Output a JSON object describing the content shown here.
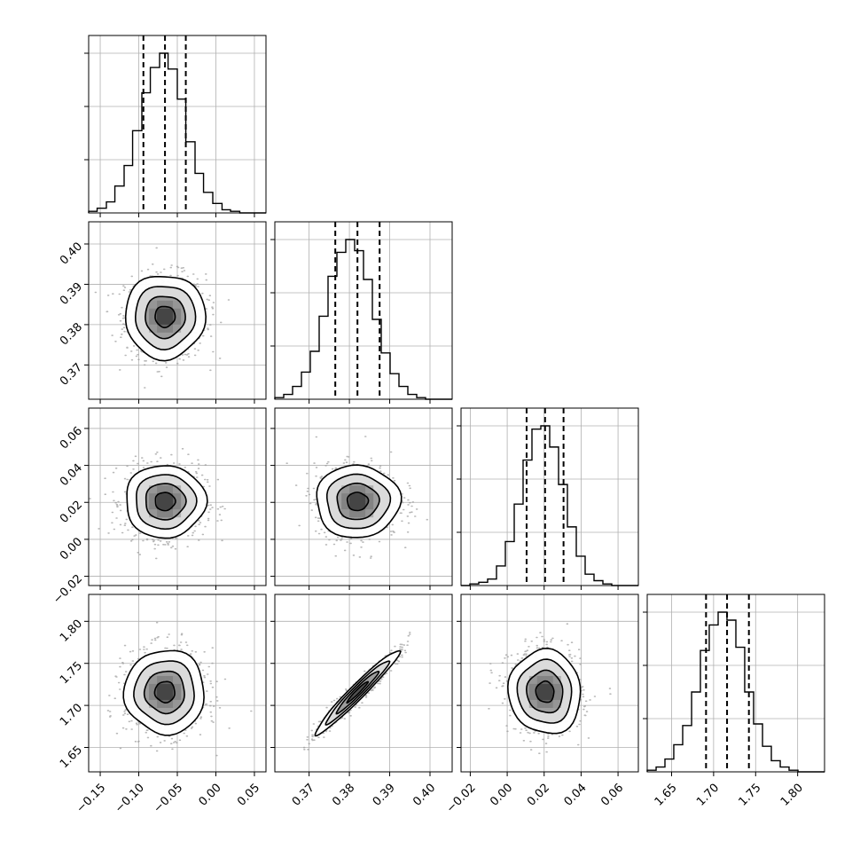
{
  "chart_data": {
    "type": "corner",
    "title": "",
    "parameters": [
      {
        "range": [
          -0.165,
          0.065
        ],
        "ticks": [
          -0.15,
          -0.1,
          -0.05,
          0.0,
          0.05
        ],
        "tick_labels": [
          "−0.15",
          "−0.10",
          "−0.05",
          "0.00",
          "0.05"
        ],
        "quantiles": [
          -0.094,
          -0.066,
          -0.039
        ],
        "center": -0.066,
        "sigma": 0.026,
        "histogram": {
          "bin_edges": [
            -0.165,
            -0.154,
            -0.142,
            -0.131,
            -0.119,
            -0.108,
            -0.096,
            -0.085,
            -0.073,
            -0.062,
            -0.05,
            -0.039,
            -0.027,
            -0.016,
            -0.004,
            0.008,
            0.019,
            0.031,
            0.042,
            0.054,
            0.065
          ],
          "counts": [
            1,
            3,
            7,
            17,
            30,
            52,
            76,
            92,
            101,
            91,
            72,
            45,
            25,
            13,
            6,
            2,
            1,
            0,
            0,
            0
          ]
        }
      },
      {
        "range": [
          0.3615,
          0.4055
        ],
        "ticks": [
          0.37,
          0.38,
          0.39,
          0.4
        ],
        "tick_labels": [
          "0.37",
          "0.38",
          "0.39",
          "0.40"
        ],
        "quantiles": [
          0.3765,
          0.382,
          0.3875
        ],
        "center": 0.382,
        "sigma": 0.0052,
        "histogram": {
          "bin_edges": [
            0.3615,
            0.3637,
            0.3659,
            0.3681,
            0.3703,
            0.3725,
            0.3747,
            0.3769,
            0.3791,
            0.3813,
            0.3835,
            0.3857,
            0.3879,
            0.3901,
            0.3923,
            0.3945,
            0.3967,
            0.3989,
            0.4011,
            0.4033,
            0.4055
          ],
          "counts": [
            1,
            3,
            8,
            17,
            30,
            52,
            77,
            92,
            100,
            93,
            75,
            50,
            29,
            16,
            8,
            3,
            1,
            0,
            0,
            0
          ]
        }
      },
      {
        "range": [
          -0.025,
          0.071
        ],
        "ticks": [
          -0.02,
          0.0,
          0.02,
          0.04,
          0.06
        ],
        "tick_labels": [
          "−0.02",
          "0.00",
          "0.02",
          "0.04",
          "0.06"
        ],
        "quantiles": [
          0.0105,
          0.0205,
          0.0305
        ],
        "center": 0.0205,
        "sigma": 0.0098,
        "histogram": {
          "bin_edges": [
            -0.025,
            -0.0202,
            -0.0154,
            -0.0106,
            -0.0058,
            -0.001,
            0.0038,
            0.0086,
            0.0134,
            0.0182,
            0.023,
            0.0278,
            0.0326,
            0.0374,
            0.0422,
            0.047,
            0.0518,
            0.0566,
            0.0614,
            0.0662,
            0.071
          ],
          "counts": [
            0,
            1,
            2,
            4,
            12,
            27,
            50,
            77,
            96,
            98,
            85,
            62,
            36,
            18,
            7,
            3,
            1,
            0,
            0,
            0
          ]
        }
      },
      {
        "range": [
          1.621,
          1.832
        ],
        "ticks": [
          1.65,
          1.7,
          1.75,
          1.8
        ],
        "tick_labels": [
          "1.65",
          "1.70",
          "1.75",
          "1.80"
        ],
        "quantiles": [
          1.691,
          1.716,
          1.742
        ],
        "center": 1.716,
        "sigma": 0.025,
        "histogram": {
          "bin_edges": [
            1.621,
            1.6316,
            1.6421,
            1.6526,
            1.6632,
            1.6738,
            1.6843,
            1.6948,
            1.7054,
            1.7159,
            1.7265,
            1.737,
            1.7476,
            1.7582,
            1.7687,
            1.7793,
            1.7898,
            1.8004,
            1.8109,
            1.8215,
            1.832
          ],
          "counts": [
            1,
            3,
            8,
            17,
            29,
            50,
            76,
            92,
            100,
            95,
            78,
            50,
            30,
            16,
            7,
            3,
            1,
            0,
            0,
            0
          ]
        }
      }
    ],
    "correlations": [
      [
        1,
        0,
        0,
        0
      ],
      [
        0,
        1,
        0,
        0.97
      ],
      [
        0,
        0,
        1,
        -0.05
      ],
      [
        0,
        0.97,
        -0.05,
        1
      ]
    ],
    "contour_levels_sigma": [
      0.5,
      1.0,
      1.5,
      2.0
    ],
    "quantile_line_style": "dashed",
    "grid": true,
    "line_color": "#000000",
    "density_color": "#000000",
    "scatter_color": "#9a9a9a"
  }
}
